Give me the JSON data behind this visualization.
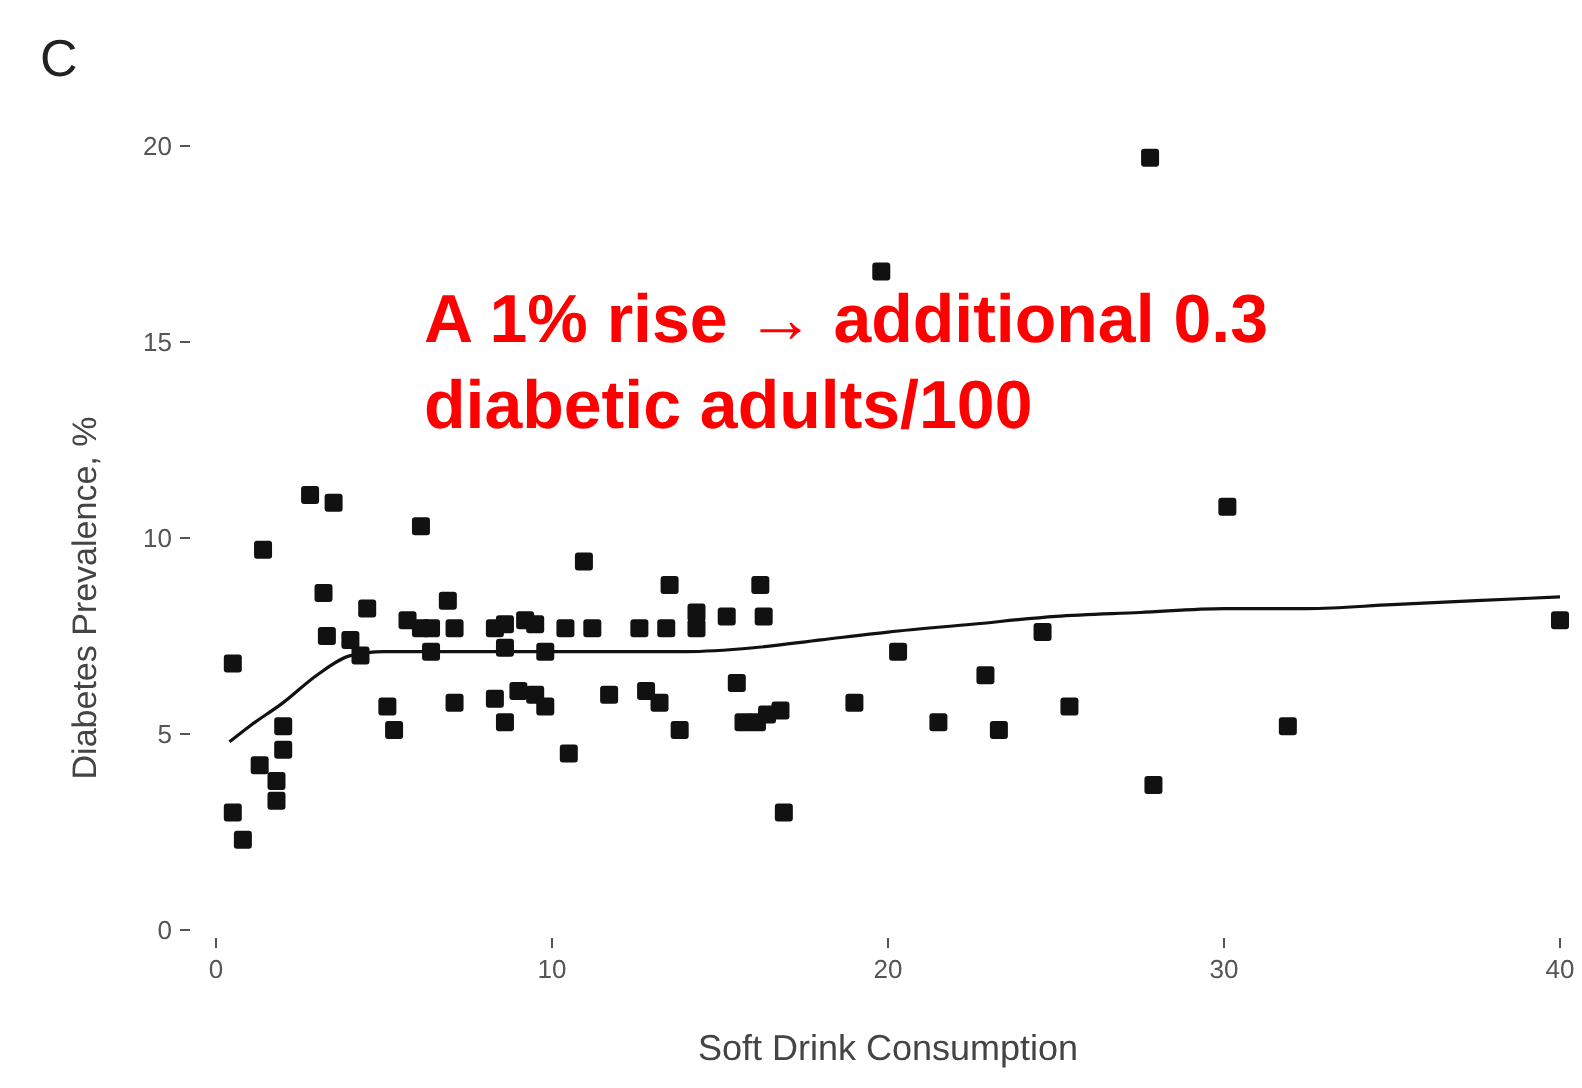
{
  "chart_data": {
    "type": "scatter",
    "title": "C",
    "xlabel": "Soft Drink Consumption",
    "ylabel": "Diabetes Prevalence, %",
    "annotations": [
      "A 1% rise → additional 0.3\ndiabetic adults/100"
    ],
    "xlim": [
      0,
      40
    ],
    "ylim": [
      0,
      20
    ],
    "xticks": [
      0,
      10,
      20,
      30,
      40
    ],
    "yticks": [
      0,
      5,
      10,
      15,
      20
    ],
    "grid": false,
    "marker": "square",
    "series": [
      {
        "color": "#111111",
        "x": [
          2.8,
          3.5,
          6.1,
          1.4,
          3.2,
          4.5,
          6.9,
          5.7,
          6.1,
          6.4,
          7.1,
          3.3,
          4.0,
          4.3,
          6.4,
          8.3,
          8.6,
          9.2,
          9.5,
          10.4,
          8.6,
          9.8,
          0.5,
          5.1,
          7.1,
          8.3,
          9.0,
          9.5,
          9.8,
          8.6,
          5.3,
          2.0,
          2.0,
          10.5,
          1.3,
          1.8,
          1.8,
          0.5,
          0.8,
          10.95,
          13.5,
          16.2,
          11.2,
          12.6,
          13.4,
          14.3,
          14.3,
          15.2,
          16.3,
          20.3,
          11.7,
          12.8,
          13.2,
          15.5,
          13.8,
          15.7,
          16.1,
          16.4,
          16.8,
          19.0,
          21.5,
          16.9,
          19.8,
          27.8,
          30.1,
          24.6,
          22.9,
          23.3,
          25.4,
          31.9,
          27.9,
          40.0
        ],
        "values": [
          11.1,
          10.9,
          10.3,
          9.7,
          8.6,
          8.2,
          8.4,
          7.9,
          7.7,
          7.7,
          7.7,
          7.5,
          7.4,
          7.0,
          7.1,
          7.7,
          7.8,
          7.9,
          7.8,
          7.7,
          7.2,
          7.1,
          6.8,
          5.7,
          5.8,
          5.9,
          6.1,
          6.0,
          5.7,
          5.3,
          5.1,
          5.2,
          4.6,
          4.5,
          4.2,
          3.8,
          3.3,
          3.0,
          2.3,
          9.4,
          8.8,
          8.8,
          7.7,
          7.7,
          7.7,
          8.1,
          7.7,
          8.0,
          8.0,
          7.1,
          6.0,
          6.1,
          5.8,
          6.3,
          5.1,
          5.3,
          5.3,
          5.5,
          5.6,
          5.8,
          5.3,
          3.0,
          16.8,
          19.7,
          10.8,
          7.6,
          6.5,
          5.1,
          5.7,
          5.2,
          3.7,
          7.9
        ]
      },
      {
        "type": "line",
        "color": "#111111",
        "line_style": "solid",
        "marker": "none",
        "x": [
          0.4,
          1,
          2,
          3,
          4,
          5,
          6,
          8,
          10,
          12,
          14,
          16,
          18,
          20,
          22.5,
          25,
          27.5,
          30,
          32.5,
          35,
          37.5,
          40
        ],
        "values": [
          4.8,
          5.2,
          5.8,
          6.5,
          7.0,
          7.1,
          7.1,
          7.1,
          7.1,
          7.1,
          7.1,
          7.2,
          7.4,
          7.6,
          7.8,
          8.0,
          8.1,
          8.2,
          8.2,
          8.3,
          8.4,
          8.5
        ]
      }
    ]
  }
}
